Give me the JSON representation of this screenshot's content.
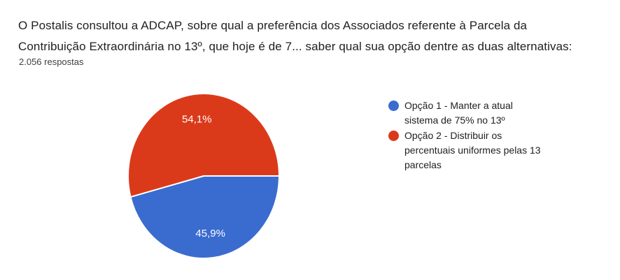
{
  "header": {
    "title_lines": [
      "O Postalis consultou a ADCAP, sobre qual a preferência dos Associados referente à Parcela da",
      "Contribuição Extraordinária no 13º, que hoje é de 7... saber qual sua opção dentre as duas alternativas:"
    ],
    "response_count": "2.056 respostas"
  },
  "chart_data": {
    "type": "pie",
    "title": "O Postalis consultou a ADCAP, sobre qual a preferência dos Associados referente à Parcela da Contribuição Extraordinária no 13º, que hoje é de 7... saber qual sua opção dentre as duas alternativas:",
    "subtitle": "2.056 respostas",
    "total_responses": 2056,
    "categories": [
      "Opção 1 - Manter a atual sistema de 75% no 13º",
      "Opção 2 - Distribuir os percentuais uniformes pelas 13 parcelas"
    ],
    "values": [
      45.9,
      54.1
    ],
    "value_labels": [
      "45,9%",
      "54,1%"
    ],
    "colors": [
      "#3A6BCF",
      "#DB3A1A"
    ],
    "start_angle_deg": 0,
    "direction": "clockwise",
    "legend_position": "right",
    "slice_border_color": "#ffffff",
    "slice_label_color": "#ffffff"
  },
  "legend": {
    "items": [
      {
        "color": "#3A6BCF",
        "label": "Opção 1 - Manter a atual sistema de 75% no 13º",
        "lines": [
          "Opção 1 - Manter a atual",
          "sistema de 75% no 13º"
        ]
      },
      {
        "color": "#DB3A1A",
        "label": "Opção 2 - Distribuir os percentuais uniformes pelas 13 parcelas",
        "lines": [
          "Opção 2 - Distribuir os",
          "percentuais uniformes pelas 13",
          "parcelas"
        ]
      }
    ]
  }
}
